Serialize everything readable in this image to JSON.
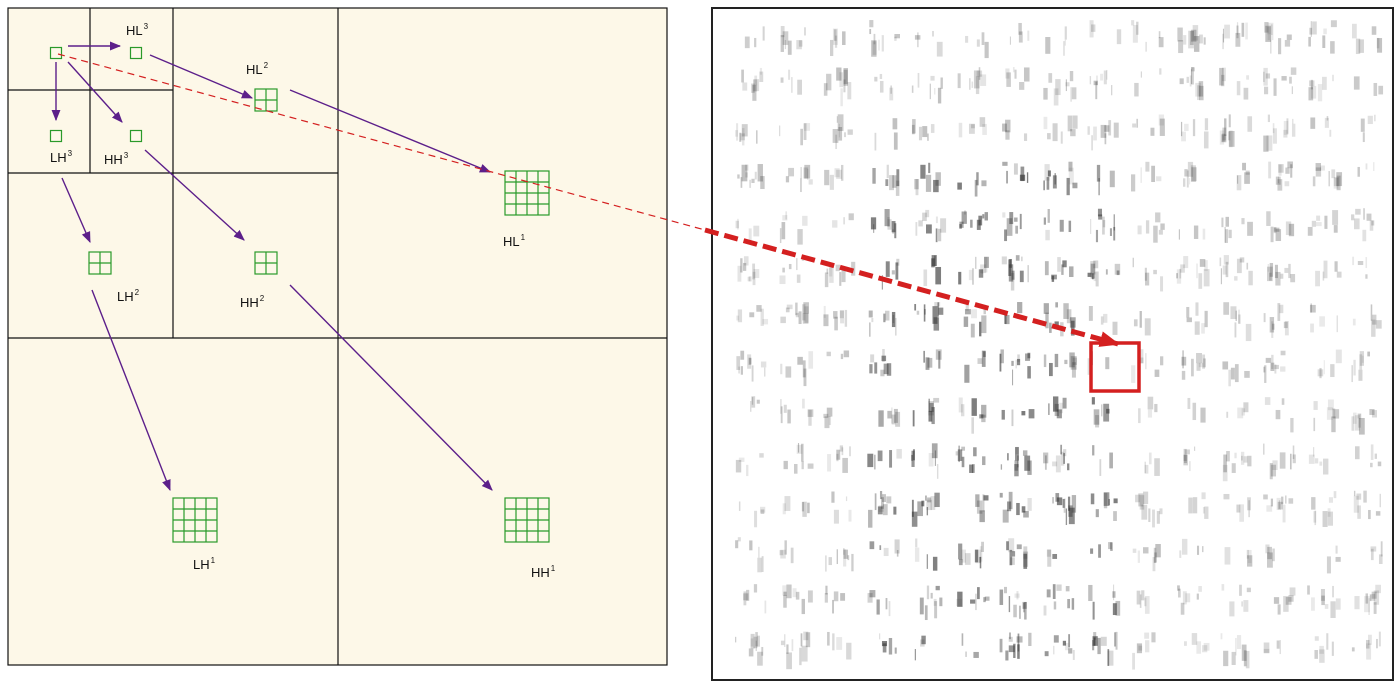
{
  "labels": [
    {
      "base": "HL",
      "sup": "3"
    },
    {
      "base": "LH",
      "sup": "3"
    },
    {
      "base": "HH",
      "sup": "3"
    },
    {
      "base": "HL",
      "sup": "2"
    },
    {
      "base": "LH",
      "sup": "2"
    },
    {
      "base": "HH",
      "sup": "2"
    },
    {
      "base": "HL",
      "sup": "1"
    },
    {
      "base": "LH",
      "sup": "1"
    },
    {
      "base": "HH",
      "sup": "1"
    }
  ]
}
